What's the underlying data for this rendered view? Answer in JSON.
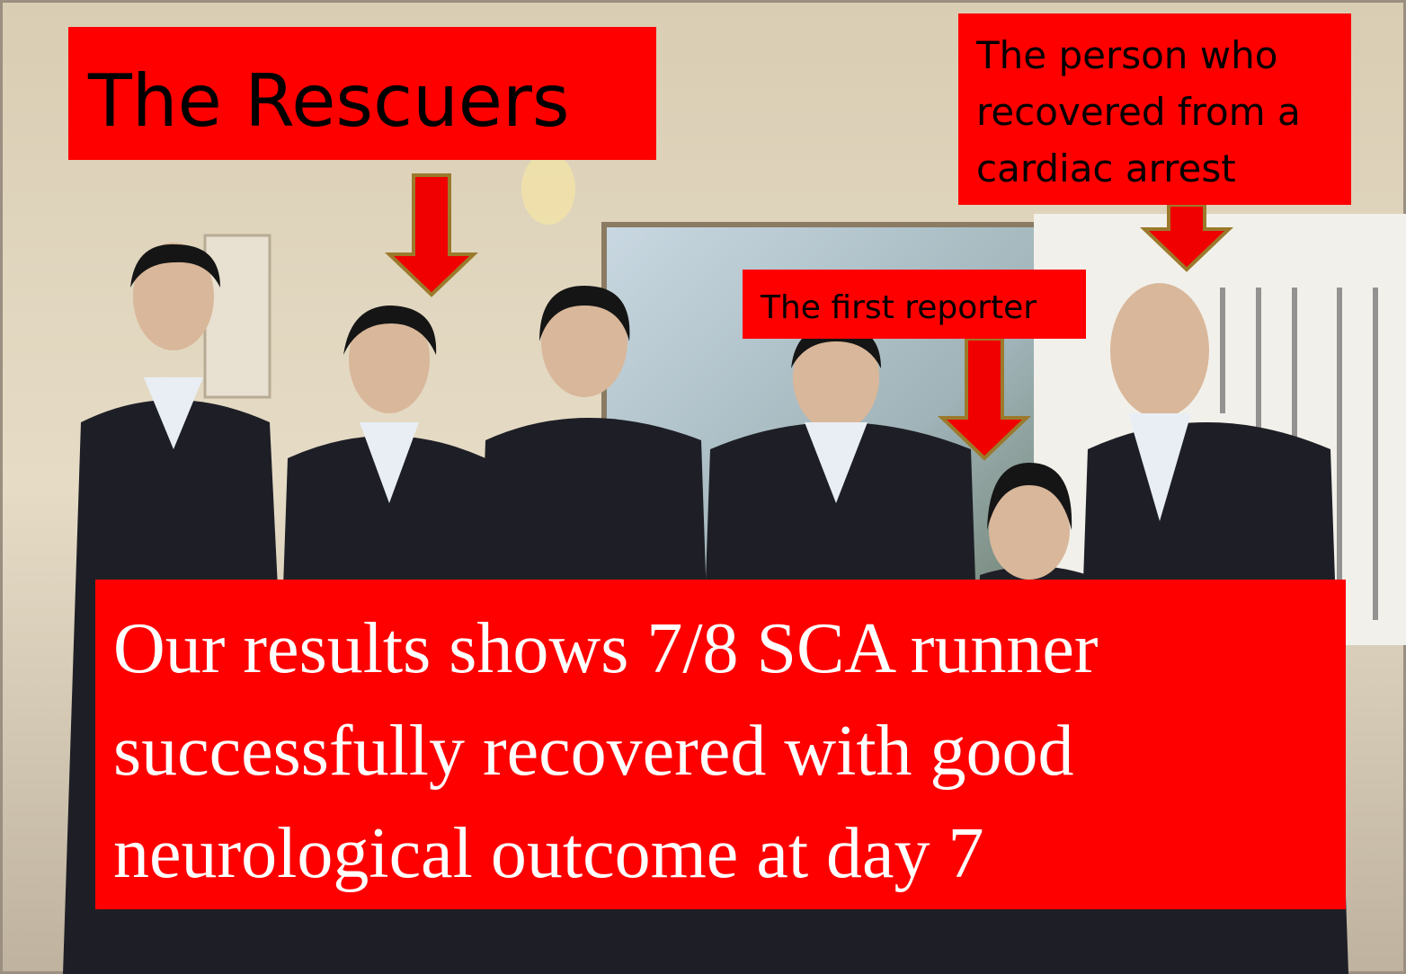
{
  "labels": [
    {
      "lines": [
        "The Rescuers"
      ]
    },
    {
      "lines": [
        "The person who",
        "recovered from a",
        "cardiac arrest"
      ]
    },
    {
      "lines": [
        "The first reporter"
      ]
    },
    {
      "lines": [
        "Our results shows 7/8 SCA runner",
        "successfully recovered with good",
        "neurological outcome at day 7"
      ]
    }
  ]
}
